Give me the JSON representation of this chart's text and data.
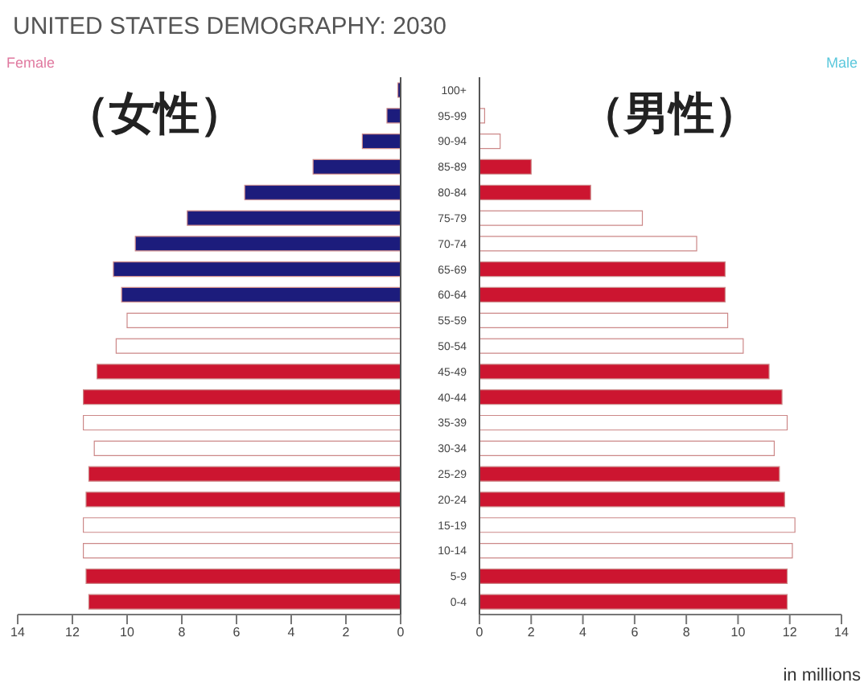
{
  "chart_data": [
    {
      "type": "bar",
      "orientation": "horizontal",
      "title": "UNITED STATES DEMOGRAPHY: 2030",
      "subtitle": "Female",
      "annotations": [
        "（女性）"
      ],
      "tick_labels": "x",
      "values": [
        0.1,
        0.5,
        1.4,
        3.2,
        5.7,
        7.8,
        9.7,
        10.5,
        10.2,
        10.0,
        10.4,
        11.1,
        11.6,
        11.6,
        11.2,
        11.4,
        11.5,
        11.6,
        11.6,
        11.5,
        11.4
      ],
      "colors": [
        "#1c1c7c",
        "#1c1c7c",
        "#1c1c7c",
        "#1c1c7c",
        "#1c1c7c",
        "#1c1c7c",
        "#1c1c7c",
        "#1c1c7c",
        "#1c1c7c",
        "#ffffff",
        "#ffffff",
        "#cc1530",
        "#cc1530",
        "#ffffff",
        "#ffffff",
        "#cc1530",
        "#cc1530",
        "#ffffff",
        "#ffffff",
        "#cc1530",
        "#cc1530"
      ],
      "xlim": [
        14,
        0
      ],
      "xticks": [
        14,
        12,
        10,
        8,
        6,
        4,
        2,
        0
      ]
    },
    {
      "type": "bar",
      "orientation": "horizontal",
      "subtitle": "Male",
      "annotations": [
        "（男性）"
      ],
      "xlabel": "in millions",
      "categories": [
        "100+",
        "95-99",
        "90-94",
        "85-89",
        "80-84",
        "75-79",
        "70-74",
        "65-69",
        "60-64",
        "55-59",
        "50-54",
        "45-49",
        "40-44",
        "35-39",
        "30-34",
        "25-29",
        "20-24",
        "15-19",
        "10-14",
        "5-9",
        "0-4"
      ],
      "values": [
        null,
        0.2,
        0.8,
        2.0,
        4.3,
        6.3,
        8.4,
        9.5,
        9.5,
        9.6,
        10.2,
        11.2,
        11.7,
        11.9,
        11.4,
        11.6,
        11.8,
        12.2,
        12.1,
        11.9,
        11.9
      ],
      "colors": [
        "#ffffff",
        "#ffffff",
        "#ffffff",
        "#cc1530",
        "#cc1530",
        "#ffffff",
        "#ffffff",
        "#cc1530",
        "#cc1530",
        "#ffffff",
        "#ffffff",
        "#cc1530",
        "#cc1530",
        "#ffffff",
        "#ffffff",
        "#cc1530",
        "#cc1530",
        "#ffffff",
        "#ffffff",
        "#cc1530",
        "#cc1530"
      ],
      "xlim": [
        0,
        14
      ],
      "xticks": [
        0,
        2,
        4,
        6,
        8,
        10,
        12,
        14
      ]
    }
  ]
}
